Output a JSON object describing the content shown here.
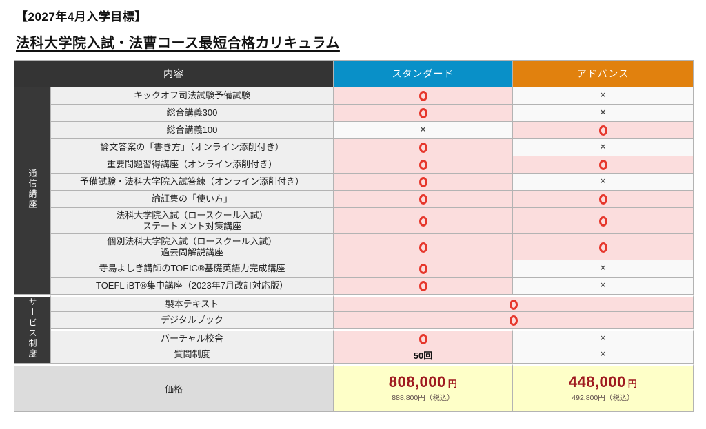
{
  "page": {
    "title_top": "【2027年4月入学目標】",
    "title_main": "法科大学院入試・法曹コース最短合格カリキュラム"
  },
  "table": {
    "header": {
      "content": "内容",
      "standard": "スタンダード",
      "advance": "アドバンス"
    },
    "groups": [
      {
        "label": "通信講座",
        "rowspan": 11
      },
      {
        "label": "サービス制度",
        "rowspan": 4
      }
    ],
    "marks": {
      "circle": "○",
      "cross": "×"
    },
    "rows": [
      {
        "label": "キックオフ司法試験予備試験",
        "std": "circle",
        "adv": "cross"
      },
      {
        "label": "総合講義300",
        "std": "circle",
        "adv": "cross"
      },
      {
        "label": "総合講義100",
        "std": "cross",
        "adv": "circle"
      },
      {
        "label": "論文答案の「書き方」（オンライン添削付き）",
        "std": "circle",
        "adv": "cross"
      },
      {
        "label": "重要問題習得講座（オンライン添削付き）",
        "std": "circle",
        "adv": "circle"
      },
      {
        "label": "予備試験・法科大学院入試答練（オンライン添削付き）",
        "std": "circle",
        "adv": "cross"
      },
      {
        "label": "論証集の「使い方」",
        "std": "circle",
        "adv": "circle"
      },
      {
        "label": "法科大学院入試（ロースクール入試）\nステートメント対策講座",
        "std": "circle",
        "adv": "circle",
        "two_line": true
      },
      {
        "label": "個別法科大学院入試（ロースクール入試）\n過去問解説講座",
        "std": "circle",
        "adv": "circle",
        "two_line": true
      },
      {
        "label": "寺島よしき講師のTOEIC®基礎英語力完成講座",
        "std": "circle",
        "adv": "cross"
      },
      {
        "label": "TOEFL iBT®集中講座（2023年7月改訂対応版）",
        "std": "circle",
        "adv": "cross"
      },
      {
        "label": "製本テキスト",
        "merged": "circle",
        "break": true
      },
      {
        "label": "デジタルブック",
        "merged": "circle"
      },
      {
        "label": "バーチャル校舎",
        "std": "circle",
        "adv": "cross",
        "break": true
      },
      {
        "label": "質問制度",
        "std": "50回",
        "adv": "cross"
      }
    ],
    "price_row": {
      "label": "価格",
      "standard": {
        "main": "808,000",
        "unit": "円",
        "sub": "888,800円（税込）"
      },
      "advance": {
        "main": "448,000",
        "unit": "円",
        "sub": "492,800円（税込）"
      }
    },
    "colors": {
      "standard_header": "#0990c8",
      "advance_header": "#e1810e",
      "content_header": "#343434",
      "circle_red": "#e6362b",
      "included_pink": "#fbdddd",
      "excluded_gray": "#f9f9f9",
      "price_red": "#9f1a20",
      "price_yellow": "#feffc8"
    }
  }
}
